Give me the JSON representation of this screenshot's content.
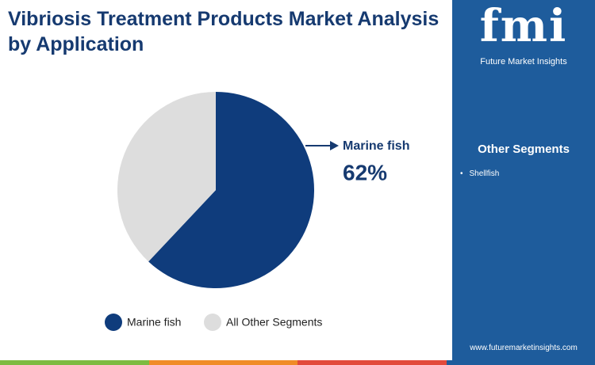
{
  "chart_data": {
    "type": "pie",
    "title": "Vibriosis Treatment Products Market Analysis by Application",
    "categories": [
      "Marine fish",
      "All Other Segments"
    ],
    "values": [
      62,
      38
    ],
    "value_labels": [
      "62%",
      null
    ],
    "colors": [
      "#0f3c7c",
      "#dddddd"
    ]
  },
  "sidebar": {
    "logo": "fmi",
    "brand": "Future Market Insights",
    "heading": "Other Segments",
    "items": [
      "Shellfish"
    ],
    "url": "www.futuremarketinsights.com"
  }
}
